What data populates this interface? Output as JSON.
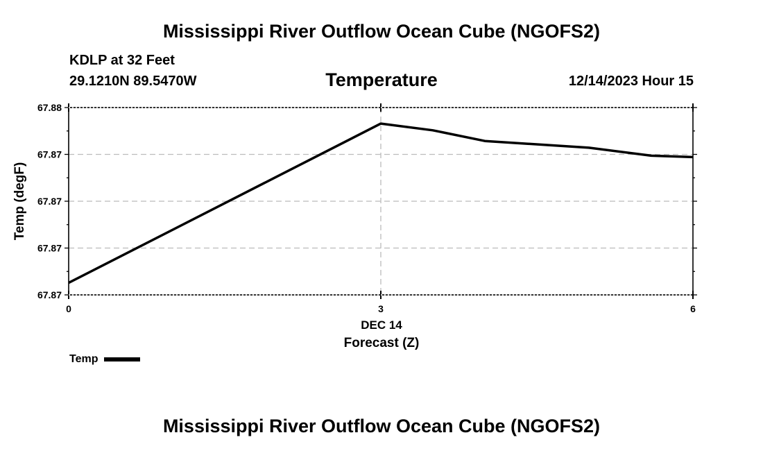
{
  "header": {
    "main_title": "Mississippi River Outflow Ocean Cube (NGOFS2)",
    "station": "KDLP at 32 Feet",
    "coordinates": "29.1210N  89.5470W",
    "variable_title": "Temperature",
    "timestamp": "12/14/2023 Hour 15"
  },
  "footer": {
    "title": "Mississippi River Outflow Ocean Cube (NGOFS2)"
  },
  "colors": {
    "line": "#000000",
    "grid": "#bbbbbb",
    "background": "#ffffff"
  },
  "chart_data": {
    "type": "line",
    "title": "Temperature",
    "xlabel": "Forecast (Z)",
    "x_sublabel": "DEC 14",
    "ylabel": "Temp (degF)",
    "xlim": [
      0,
      6
    ],
    "ylim": [
      67.866,
      67.88
    ],
    "x_ticks": [
      0,
      3,
      6
    ],
    "x_tick_labels": [
      "0",
      "3",
      "6"
    ],
    "y_ticks": [
      67.866,
      67.8695,
      67.873,
      67.8765,
      67.88
    ],
    "y_tick_labels": [
      "67.87",
      "67.87",
      "67.87",
      "67.87",
      "67.88"
    ],
    "grid": true,
    "legend_position": "bottom-left",
    "series": [
      {
        "name": "Temp",
        "x": [
          0,
          3,
          3.5,
          4,
          5,
          5.6,
          6
        ],
        "y": [
          67.8669,
          67.8788,
          67.8783,
          67.8775,
          67.877,
          67.8764,
          67.8763
        ]
      }
    ]
  }
}
